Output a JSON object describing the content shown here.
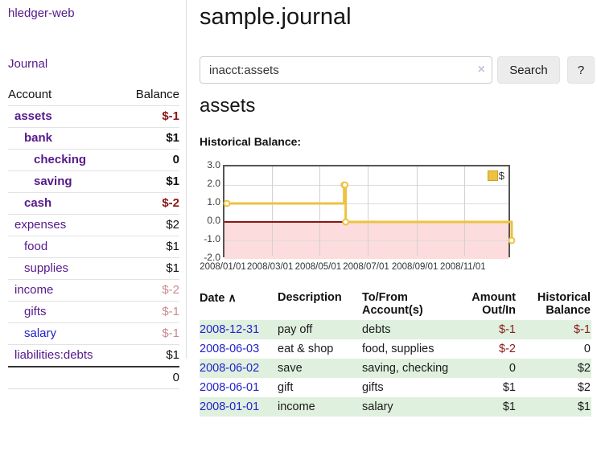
{
  "app": {
    "brand": "hledger-web",
    "nav_journal": "Journal"
  },
  "sidebar": {
    "col_account": "Account",
    "col_balance": "Balance",
    "rows": [
      {
        "account": "assets",
        "balance": "$-1",
        "indent": 0,
        "bold": true,
        "neg": "strong",
        "link": "purple"
      },
      {
        "account": "bank",
        "balance": "$1",
        "indent": 1,
        "bold": true,
        "neg": "none",
        "link": "purple"
      },
      {
        "account": "checking",
        "balance": "0",
        "indent": 2,
        "bold": true,
        "neg": "none",
        "link": "purple"
      },
      {
        "account": "saving",
        "balance": "$1",
        "indent": 2,
        "bold": true,
        "neg": "none",
        "link": "purple"
      },
      {
        "account": "cash",
        "balance": "$-2",
        "indent": 1,
        "bold": true,
        "neg": "strong",
        "link": "purple"
      },
      {
        "account": "expenses",
        "balance": "$2",
        "indent": 0,
        "bold": false,
        "neg": "none",
        "link": "purple"
      },
      {
        "account": "food",
        "balance": "$1",
        "indent": 1,
        "bold": false,
        "neg": "none",
        "link": "purple"
      },
      {
        "account": "supplies",
        "balance": "$1",
        "indent": 1,
        "bold": false,
        "neg": "none",
        "link": "purple"
      },
      {
        "account": "income",
        "balance": "$-2",
        "indent": 0,
        "bold": false,
        "neg": "soft",
        "link": "purple"
      },
      {
        "account": "gifts",
        "balance": "$-1",
        "indent": 1,
        "bold": false,
        "neg": "soft",
        "link": "purple"
      },
      {
        "account": "salary",
        "balance": "$-1",
        "indent": 1,
        "bold": false,
        "neg": "soft",
        "link": "blue"
      },
      {
        "account": "liabilities:debts",
        "balance": "$1",
        "indent": 0,
        "bold": false,
        "neg": "none",
        "link": "purple"
      }
    ],
    "total": "0"
  },
  "main": {
    "title": "sample.journal",
    "search": {
      "value": "inacct:assets",
      "clear_icon": "×",
      "button_label": "Search",
      "help_label": "?"
    },
    "account_heading": "assets",
    "chart_label": "Historical Balance:"
  },
  "chart_data": {
    "type": "line",
    "subtype": "step",
    "title": "Historical Balance:",
    "series": [
      {
        "name": "$",
        "color": "#edc240",
        "points": [
          [
            "2008-01-01",
            1
          ],
          [
            "2008-06-01",
            2
          ],
          [
            "2008-06-02",
            2
          ],
          [
            "2008-06-03",
            0
          ],
          [
            "2008-12-31",
            -1
          ]
        ]
      }
    ],
    "x_start": "2008-01-01",
    "x_end": "2008-12-31",
    "xticks": [
      {
        "date": "2008-01-01",
        "label": "2008/01/01"
      },
      {
        "date": "2008-03-01",
        "label": "2008/03/01"
      },
      {
        "date": "2008-05-01",
        "label": "2008/05/01"
      },
      {
        "date": "2008-07-01",
        "label": "2008/07/01"
      },
      {
        "date": "2008-09-01",
        "label": "2008/09/01"
      },
      {
        "date": "2008-11-01",
        "label": "2008/11/01"
      }
    ],
    "yticks": [
      "3.0",
      "2.0",
      "1.0",
      "0.0",
      "-1.0",
      "-2.0"
    ],
    "ylim": [
      -2,
      3
    ],
    "legend": {
      "label": "$",
      "position": "top-right"
    },
    "grid": true,
    "negative_region_color": "#fcdcdc",
    "zero_line_color": "#8b1414"
  },
  "register": {
    "headers": {
      "date": "Date",
      "sort_icon": "∧",
      "description": "Description",
      "accounts_line1": "To/From",
      "accounts_line2": "Account(s)",
      "amount_line1": "Amount",
      "amount_line2": "Out/In",
      "balance_line1": "Historical",
      "balance_line2": "Balance"
    },
    "rows": [
      {
        "date": "2008-12-31",
        "description": "pay off",
        "accounts": "debts",
        "amount": "$-1",
        "amount_neg": true,
        "balance": "$-1",
        "balance_neg": true
      },
      {
        "date": "2008-06-03",
        "description": "eat & shop",
        "accounts": "food, supplies",
        "amount": "$-2",
        "amount_neg": true,
        "balance": "0",
        "balance_neg": false
      },
      {
        "date": "2008-06-02",
        "description": "save",
        "accounts": "saving, checking",
        "amount": "0",
        "amount_neg": false,
        "balance": "$2",
        "balance_neg": false
      },
      {
        "date": "2008-06-01",
        "description": "gift",
        "accounts": "gifts",
        "amount": "$1",
        "amount_neg": false,
        "balance": "$2",
        "balance_neg": false
      },
      {
        "date": "2008-01-01",
        "description": "income",
        "accounts": "salary",
        "amount": "$1",
        "amount_neg": false,
        "balance": "$1",
        "balance_neg": false
      }
    ]
  }
}
